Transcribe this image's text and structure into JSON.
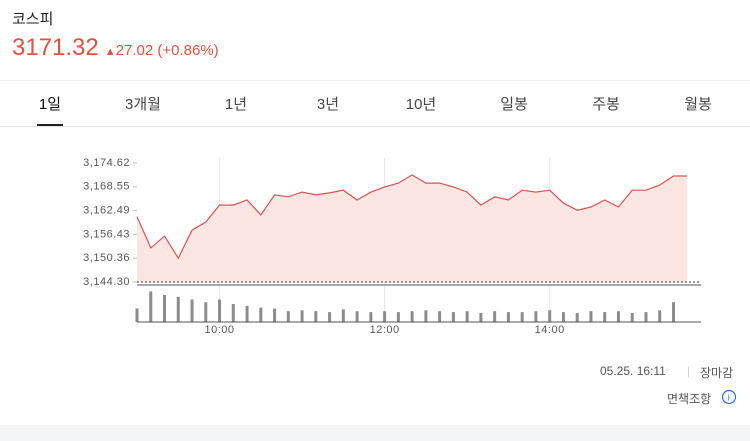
{
  "header": {
    "name": "코스피",
    "price": "3171.32",
    "change": "27.02",
    "change_pct": "(+0.86%)"
  },
  "tabs": {
    "items": [
      "1일",
      "3개월",
      "1년",
      "3년",
      "10년",
      "일봉",
      "주봉",
      "월봉"
    ],
    "active": 0
  },
  "chart_data": {
    "type": "line",
    "x": [
      "09:00",
      "09:10",
      "09:20",
      "09:30",
      "09:40",
      "09:50",
      "10:00",
      "10:10",
      "10:20",
      "10:30",
      "10:40",
      "10:50",
      "11:00",
      "11:10",
      "11:20",
      "11:30",
      "11:40",
      "11:50",
      "12:00",
      "12:10",
      "12:20",
      "12:30",
      "12:40",
      "12:50",
      "13:00",
      "13:10",
      "13:20",
      "13:30",
      "13:40",
      "13:50",
      "14:00",
      "14:10",
      "14:20",
      "14:30",
      "14:40",
      "14:50",
      "15:00",
      "15:10",
      "15:20",
      "15:30",
      "15:40"
    ],
    "series": [
      {
        "color": "#d9534f",
        "values": [
          3160.9,
          3153.0,
          3156.0,
          3150.4,
          3157.5,
          3159.6,
          3163.9,
          3163.9,
          3165.2,
          3161.4,
          3166.5,
          3166.0,
          3167.2,
          3166.5,
          3167.0,
          3167.7,
          3165.2,
          3167.2,
          3168.5,
          3169.5,
          3171.6,
          3169.5,
          3169.5,
          3168.5,
          3167.2,
          3163.9,
          3166.0,
          3165.2,
          3167.7,
          3167.2,
          3167.7,
          3164.4,
          3162.6,
          3163.4,
          3165.2,
          3163.4,
          3167.7,
          3167.7,
          3169.0,
          3171.32,
          3171.32
        ]
      }
    ],
    "area_color": "#fbe6e4",
    "ylim": [
      3144.3,
      3174.62
    ],
    "yticks": [
      {
        "value": 3144.3,
        "label": "3,144.30"
      },
      {
        "value": 3150.36,
        "label": "3,150.36"
      },
      {
        "value": 3156.43,
        "label": "3,156.43"
      },
      {
        "value": 3162.49,
        "label": "3,162.49"
      },
      {
        "value": 3168.55,
        "label": "3,168.55"
      },
      {
        "value": 3174.62,
        "label": "3,174.62"
      }
    ],
    "xlim": [
      "09:00",
      "15:50"
    ],
    "xticks": [
      "10:00",
      "12:00",
      "14:00"
    ],
    "volume": {
      "color": "#8c8c8c",
      "ylim": [
        0,
        40
      ],
      "values": [
        15,
        34,
        30,
        28,
        25,
        22,
        25,
        20,
        18,
        16,
        15,
        12,
        13,
        12,
        11,
        14,
        12,
        11,
        12,
        11,
        12,
        13,
        12,
        11,
        12,
        10,
        12,
        11,
        11,
        12,
        13,
        11,
        10,
        12,
        11,
        12,
        10,
        11,
        13,
        22,
        0
      ]
    }
  },
  "footer": {
    "time": "05.25. 16:11",
    "status": "장마감",
    "disclaimer": "면책조항"
  }
}
